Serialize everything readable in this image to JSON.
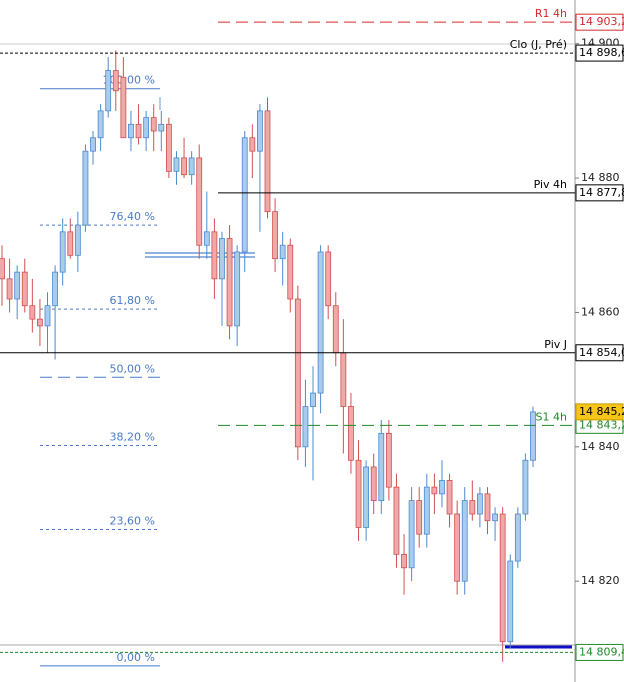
{
  "chart_data": {
    "type": "candlestick",
    "ylim": [
      14805,
      14906.5
    ],
    "yticks": [
      {
        "value": 14820,
        "label": "14 820"
      },
      {
        "value": 14840,
        "label": "14 840"
      },
      {
        "value": 14860,
        "label": "14 860"
      },
      {
        "value": 14880,
        "label": "14 880"
      },
      {
        "value": 14900,
        "label": "14 900"
      }
    ],
    "up_color": "#a9cbec",
    "up_border": "#4a8ad0",
    "down_color": "#f0a8a8",
    "down_border": "#d05050",
    "series": [
      {
        "open": [
          14868,
          14865,
          14862,
          14866,
          14861,
          14859,
          14858,
          14861,
          14866,
          14872,
          14868.5,
          14873,
          14884,
          14886,
          14890,
          14896,
          14895,
          14886,
          14888,
          14886,
          14889,
          14887,
          14888,
          14881,
          14883,
          14880.5,
          14883,
          14870,
          14872,
          14865,
          14871,
          14858,
          14869,
          14886,
          14884,
          14890,
          14875,
          14868,
          14870,
          14862,
          14840,
          14846,
          14848,
          14869,
          14861,
          14854,
          14846,
          14838,
          14828,
          14837,
          14832,
          14842,
          14834,
          14824,
          14822,
          14832,
          14827,
          14834,
          14833,
          14835,
          14830,
          14820,
          14832,
          14830,
          14833,
          14829,
          14830,
          14811,
          14823,
          14830,
          14838
        ],
        "high": [
          14870,
          14868,
          14867,
          14868,
          14865,
          14862,
          14863,
          14867,
          14874,
          14874,
          14875,
          14885,
          14887,
          14891,
          14898,
          14899,
          14898,
          14890,
          14891,
          14890,
          14891,
          14890,
          14889,
          14884,
          14886,
          14884,
          14885,
          14878,
          14874,
          14872,
          14873,
          14870,
          14887,
          14888,
          14891,
          14892,
          14877,
          14872,
          14871,
          14864,
          14850,
          14852,
          14870,
          14870,
          14863,
          14859,
          14848,
          14841,
          14838,
          14839,
          14844,
          14844,
          14836,
          14827,
          14834,
          14834,
          14836,
          14836,
          14838,
          14836,
          14832,
          14834,
          14835,
          14834,
          14834,
          14831,
          14831,
          14824,
          14831,
          14839,
          14846
        ],
        "low": [
          14861,
          14860,
          14859,
          14860,
          14857,
          14855,
          14854,
          14853,
          14864,
          14868,
          14866,
          14872,
          14882,
          14884,
          14889,
          14890,
          14886,
          14884,
          14885,
          14884,
          14884,
          14884,
          14880,
          14879,
          14880,
          14879,
          14868,
          14868,
          14862,
          14858,
          14856,
          14855,
          14866,
          14880,
          14872,
          14874,
          14866,
          14864,
          14860,
          14838,
          14837,
          14835,
          14845,
          14859,
          14852,
          14839,
          14836,
          14826,
          14826,
          14830,
          14830,
          14832,
          14822,
          14818,
          14820,
          14825,
          14825,
          14830,
          14831,
          14828,
          14818,
          14818,
          14829,
          14828,
          14827,
          14826,
          14808,
          14810,
          14822,
          14829,
          14837
        ],
        "close": [
          14865,
          14862,
          14866,
          14861,
          14859,
          14858,
          14861,
          14866,
          14872,
          14868.5,
          14873,
          14884,
          14886,
          14890,
          14896,
          14893,
          14886,
          14888,
          14886,
          14889,
          14887,
          14888,
          14881,
          14883,
          14880.5,
          14883,
          14870,
          14872,
          14865,
          14871,
          14858,
          14869,
          14886,
          14884,
          14890,
          14875,
          14868,
          14870,
          14862,
          14840,
          14846,
          14848,
          14869,
          14861,
          14854,
          14846,
          14838,
          14828,
          14837,
          14832,
          14842,
          14834,
          14824,
          14822,
          14832,
          14827,
          14834,
          14833,
          14835,
          14830,
          14820,
          14832,
          14830,
          14833,
          14829,
          14830,
          14811,
          14823,
          14830,
          14838,
          14845.2
        ]
      }
    ],
    "levels": [
      {
        "label": "R1 4h",
        "value": 14903.2,
        "value_label": "14 903,2",
        "color": "#d42a2a",
        "style": "dashed"
      },
      {
        "label": "Clo (J, Pré)",
        "value": 14898.6,
        "value_label": "14 898,6",
        "color": "#000000",
        "style": "dotted"
      },
      {
        "label": "Piv 4h",
        "value": 14877.8,
        "value_label": "14 877,8",
        "color": "#000000",
        "style": "solid"
      },
      {
        "label": "Piv J",
        "value": 14854.0,
        "value_label": "14 854,0",
        "color": "#000000",
        "style": "solid"
      },
      {
        "label": "S1 4h",
        "value": 14843.2,
        "value_label": "14 843,2",
        "color": "#1f8a2a",
        "style": "dashed"
      },
      {
        "value": 14809.4,
        "value_label": "14 809,4",
        "color": "#1f8a2a",
        "style": "dotted"
      }
    ],
    "current_price": {
      "value": 14845.2,
      "label": "14 845,2",
      "color": "#f5c518"
    },
    "fibonacci": [
      {
        "label": "100,00 %",
        "value": 14893.3
      },
      {
        "label": "76,40 %",
        "value": 14873.0
      },
      {
        "label": "61,80 %",
        "value": 14860.5
      },
      {
        "label": "50,00 %",
        "value": 14850.35
      },
      {
        "label": "38,20 %",
        "value": 14840.2
      },
      {
        "label": "23,60 %",
        "value": 14827.7
      },
      {
        "label": "0,00 %",
        "value": 14807.4
      }
    ],
    "fib_color": "#4a7ac8"
  }
}
